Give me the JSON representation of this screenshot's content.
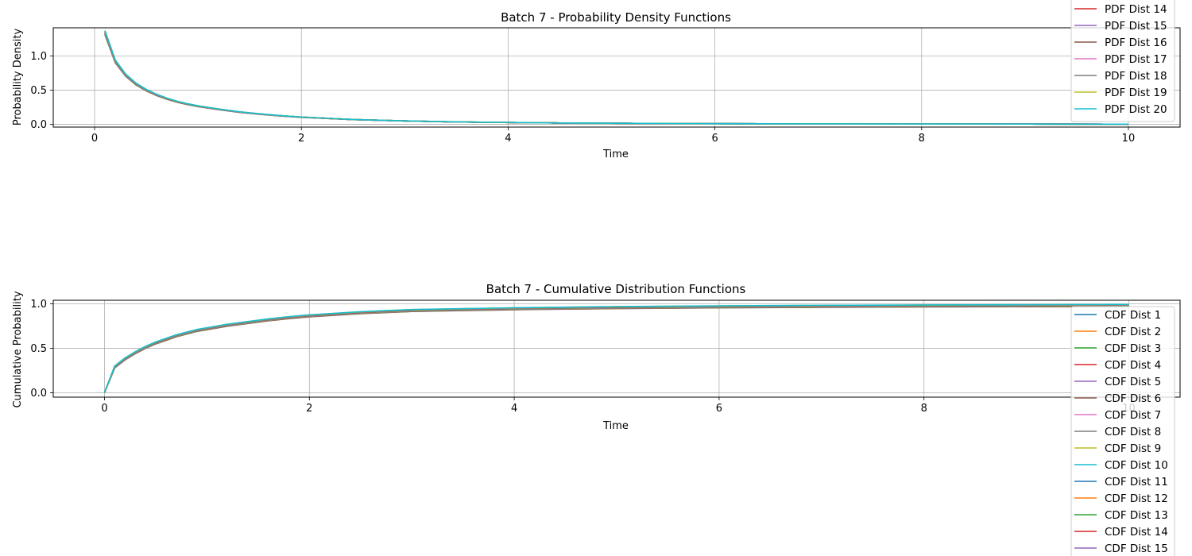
{
  "colors": [
    "#1f77b4",
    "#ff7f0e",
    "#2ca02c",
    "#d62728",
    "#9467bd",
    "#8c564b",
    "#e377c2",
    "#7f7f7f",
    "#bcbd22",
    "#17becf"
  ],
  "chart_data": [
    {
      "type": "line",
      "title": "Batch 7 - Probability Density Functions",
      "xlabel": "Time",
      "ylabel": "Probability Density",
      "xlim": [
        -0.4,
        10.5
      ],
      "ylim": [
        -0.04,
        1.41
      ],
      "xticks": [
        "0",
        "2",
        "4",
        "6",
        "8",
        "10"
      ],
      "yticks": [
        "0.0",
        "0.5",
        "1.0"
      ],
      "grid": true,
      "legend_location": "upper right",
      "x": [
        0.1,
        0.2,
        0.3,
        0.4,
        0.5,
        0.6,
        0.7,
        0.8,
        0.9,
        1.0,
        1.2,
        1.4,
        1.6,
        1.8,
        2.0,
        2.5,
        3.0,
        3.5,
        4.0,
        4.5,
        5.0,
        6.0,
        7.0,
        8.0,
        9.0,
        10.0
      ],
      "y": [
        1.34,
        0.92,
        0.72,
        0.59,
        0.5,
        0.43,
        0.375,
        0.33,
        0.295,
        0.265,
        0.22,
        0.18,
        0.15,
        0.125,
        0.105,
        0.07,
        0.05,
        0.035,
        0.027,
        0.02,
        0.016,
        0.01,
        0.007,
        0.005,
        0.004,
        0.003
      ],
      "legend_entries": [
        "PDF Dist 14",
        "PDF Dist 15",
        "PDF Dist 16",
        "PDF Dist 17",
        "PDF Dist 18",
        "PDF Dist 19",
        "PDF Dist 20"
      ],
      "legend_color_index": [
        3,
        4,
        5,
        6,
        7,
        8,
        9
      ]
    },
    {
      "type": "line",
      "title": "Batch 7 - Cumulative Distribution Functions",
      "xlabel": "Time",
      "ylabel": "Cumulative Probability",
      "xlim": [
        -0.5,
        10.5
      ],
      "ylim": [
        -0.05,
        1.04
      ],
      "xticks": [
        "0",
        "2",
        "4",
        "6",
        "8",
        "10"
      ],
      "yticks": [
        "0.0",
        "0.5",
        "1.0"
      ],
      "grid": true,
      "legend_location": "upper right",
      "x": [
        0.0,
        0.1,
        0.2,
        0.3,
        0.4,
        0.5,
        0.6,
        0.7,
        0.8,
        0.9,
        1.0,
        1.2,
        1.4,
        1.6,
        1.8,
        2.0,
        2.5,
        3.0,
        3.5,
        4.0,
        4.5,
        5.0,
        6.0,
        7.0,
        8.0,
        9.0,
        10.0
      ],
      "y": [
        0.0,
        0.29,
        0.38,
        0.45,
        0.51,
        0.56,
        0.6,
        0.64,
        0.67,
        0.7,
        0.72,
        0.76,
        0.79,
        0.82,
        0.845,
        0.865,
        0.9,
        0.925,
        0.935,
        0.945,
        0.952,
        0.958,
        0.966,
        0.972,
        0.976,
        0.979,
        0.982
      ],
      "legend_entries": [
        "CDF Dist 1",
        "CDF Dist 2",
        "CDF Dist 3",
        "CDF Dist 4",
        "CDF Dist 5",
        "CDF Dist 6",
        "CDF Dist 7",
        "CDF Dist 8",
        "CDF Dist 9",
        "CDF Dist 10",
        "CDF Dist 11",
        "CDF Dist 12",
        "CDF Dist 13",
        "CDF Dist 14",
        "CDF Dist 15"
      ],
      "legend_color_index": [
        0,
        1,
        2,
        3,
        4,
        5,
        6,
        7,
        8,
        9,
        0,
        1,
        2,
        3,
        4
      ]
    }
  ]
}
